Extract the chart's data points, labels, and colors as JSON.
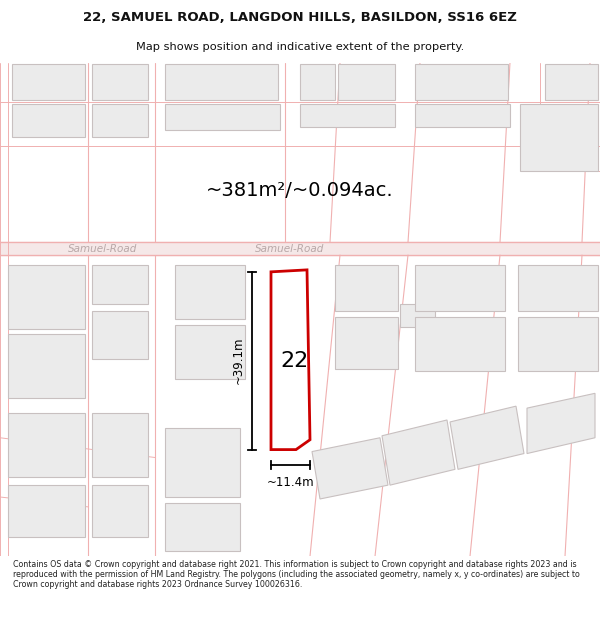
{
  "title_line1": "22, SAMUEL ROAD, LANGDON HILLS, BASILDON, SS16 6EZ",
  "title_line2": "Map shows position and indicative extent of the property.",
  "area_text": "~381m²/~0.094ac.",
  "label_22": "22",
  "dim_height": "~39.1m",
  "dim_width": "~11.4m",
  "road_label_left": "Samuel-Road",
  "road_label_right": "Samuel-Road",
  "footer": "Contains OS data © Crown copyright and database right 2021. This information is subject to Crown copyright and database rights 2023 and is reproduced with the permission of HM Land Registry. The polygons (including the associated geometry, namely x, y co-ordinates) are subject to Crown copyright and database rights 2023 Ordnance Survey 100026316.",
  "map_bg": "#f9f7f7",
  "building_fill": "#ebebeb",
  "building_stroke": "#c8c0c0",
  "road_color": "#f0b0b0",
  "road_line_color": "#c8a0a0",
  "highlight_stroke": "#cc0000",
  "road_label_color": "#b8a8a8",
  "text_color": "#222222",
  "title_color": "#111111",
  "dim_color": "#111111"
}
